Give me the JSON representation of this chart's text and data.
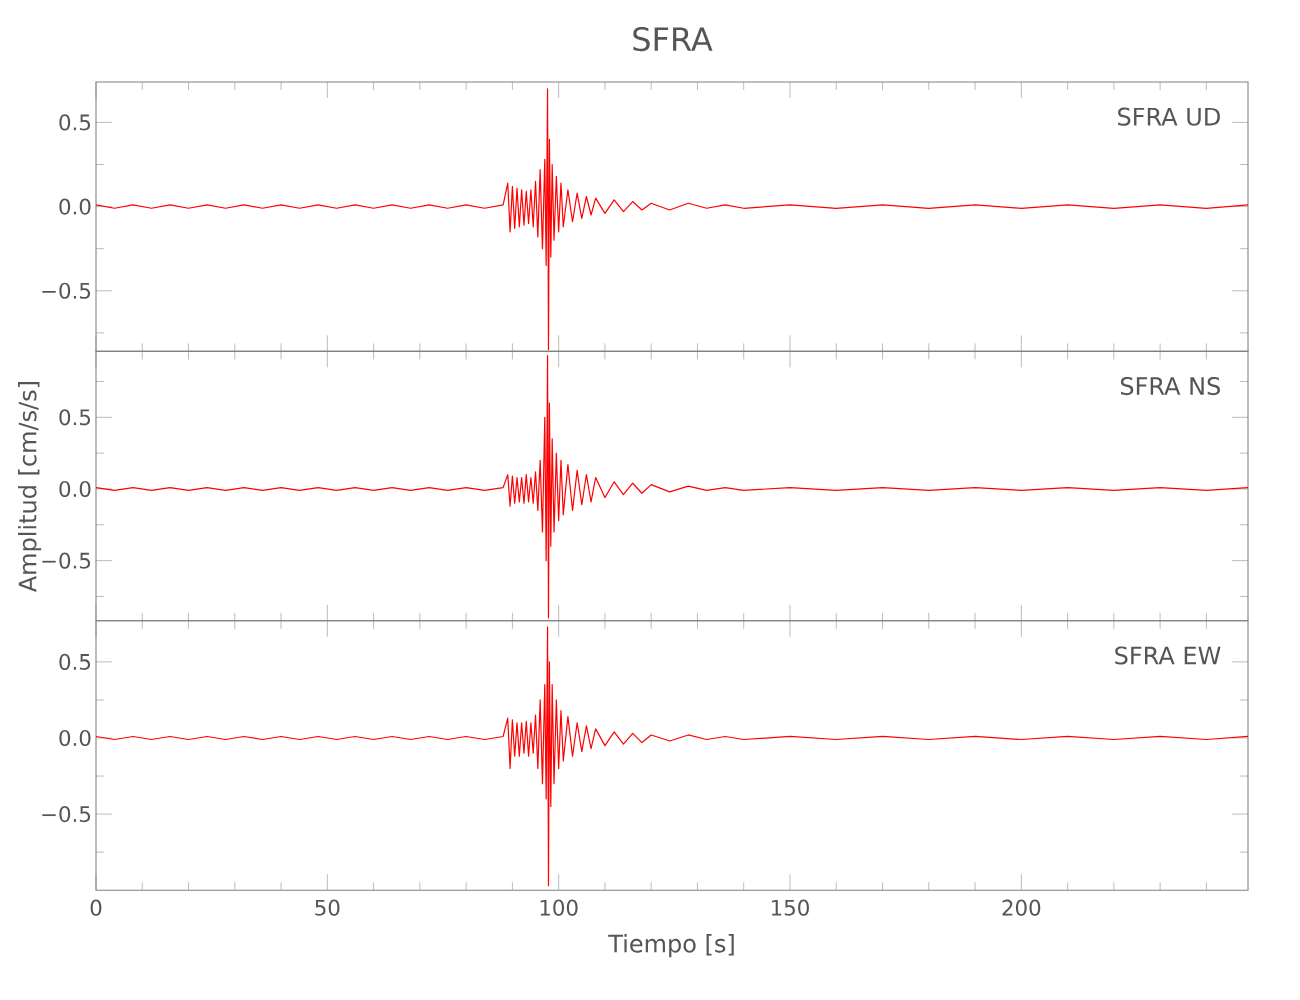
{
  "chart_data": [
    {
      "type": "line",
      "title": "SFRA",
      "annotations": [
        "SFRA UD"
      ],
      "color": "#ff0000",
      "marker": "none",
      "tick_labels": "y",
      "x": [
        0,
        4,
        8,
        12,
        16,
        20,
        24,
        28,
        32,
        36,
        40,
        44,
        48,
        52,
        56,
        60,
        64,
        68,
        72,
        76,
        80,
        84,
        88,
        89,
        89.5,
        90,
        90.5,
        91,
        91.5,
        92,
        92.5,
        93,
        93.5,
        94,
        94.5,
        95,
        95.5,
        96,
        96.5,
        97,
        97.3,
        97.6,
        97.8,
        98,
        98.3,
        98.6,
        99,
        99.5,
        100,
        100.5,
        101,
        102,
        103,
        104,
        105,
        106,
        107,
        108,
        110,
        112,
        114,
        116,
        118,
        120,
        124,
        128,
        132,
        136,
        140,
        150,
        160,
        170,
        180,
        190,
        200,
        210,
        220,
        230,
        240,
        249
      ],
      "values": [
        0.01,
        -0.01,
        0.01,
        -0.01,
        0.01,
        -0.01,
        0.01,
        -0.01,
        0.01,
        -0.01,
        0.01,
        -0.01,
        0.01,
        -0.01,
        0.01,
        -0.01,
        0.01,
        -0.01,
        0.01,
        -0.01,
        0.01,
        -0.01,
        0.01,
        0.14,
        -0.15,
        0.12,
        -0.13,
        0.11,
        -0.12,
        0.1,
        -0.11,
        0.09,
        -0.1,
        0.1,
        -0.12,
        0.15,
        -0.18,
        0.22,
        -0.25,
        0.28,
        -0.35,
        0.7,
        -0.85,
        0.4,
        -0.3,
        0.25,
        -0.2,
        0.18,
        -0.15,
        0.14,
        -0.12,
        0.1,
        -0.09,
        0.08,
        -0.07,
        0.06,
        -0.05,
        0.05,
        -0.04,
        0.04,
        -0.03,
        0.03,
        -0.02,
        0.02,
        -0.02,
        0.02,
        -0.01,
        0.01,
        -0.01,
        0.01,
        -0.01,
        0.01,
        -0.01,
        0.01,
        -0.01,
        0.01,
        -0.01,
        0.01,
        -0.01,
        0.01
      ],
      "xlim": [
        0,
        249
      ],
      "ylim": [
        -0.86,
        0.74
      ],
      "xticks": [
        0,
        {
          "value": 10,
          "label": null
        },
        {
          "value": 20,
          "label": null
        },
        {
          "value": 30,
          "label": null
        },
        {
          "value": 40,
          "label": null
        },
        50,
        {
          "value": 60,
          "label": null
        },
        {
          "value": 70,
          "label": null
        },
        {
          "value": 80,
          "label": null
        },
        {
          "value": 90,
          "label": null
        },
        100,
        {
          "value": 110,
          "label": null
        },
        {
          "value": 120,
          "label": null
        },
        {
          "value": 130,
          "label": null
        },
        {
          "value": 140,
          "label": null
        },
        150,
        {
          "value": 160,
          "label": null
        },
        {
          "value": 170,
          "label": null
        },
        {
          "value": 180,
          "label": null
        },
        {
          "value": 190,
          "label": null
        },
        200,
        {
          "value": 210,
          "label": null
        },
        {
          "value": 220,
          "label": null
        },
        {
          "value": 230,
          "label": null
        },
        {
          "value": 240,
          "label": null
        }
      ],
      "yticks": [
        {
          "value": -0.75,
          "label": null
        },
        {
          "value": -0.5,
          "label": "−0.5"
        },
        {
          "value": -0.25,
          "label": null
        },
        {
          "value": 0,
          "label": "0.0"
        },
        {
          "value": 0.25,
          "label": null
        },
        {
          "value": 0.5,
          "label": "0.5"
        }
      ]
    },
    {
      "type": "line",
      "ylabel": "Amplitud [cm/s/s]",
      "annotations": [
        "SFRA NS"
      ],
      "color": "#ff0000",
      "marker": "none",
      "tick_labels": "y",
      "x": [
        0,
        4,
        8,
        12,
        16,
        20,
        24,
        28,
        32,
        36,
        40,
        44,
        48,
        52,
        56,
        60,
        64,
        68,
        72,
        76,
        80,
        84,
        88,
        89,
        89.5,
        90,
        90.5,
        91,
        91.5,
        92,
        92.5,
        93,
        93.5,
        94,
        94.5,
        95,
        95.5,
        96,
        96.5,
        97,
        97.3,
        97.6,
        97.8,
        98,
        98.3,
        98.6,
        99,
        99.5,
        100,
        100.5,
        101,
        102,
        103,
        104,
        105,
        106,
        107,
        108,
        110,
        112,
        114,
        116,
        118,
        120,
        124,
        128,
        132,
        136,
        140,
        150,
        160,
        170,
        180,
        190,
        200,
        210,
        220,
        230,
        240,
        249
      ],
      "values": [
        0.01,
        -0.01,
        0.01,
        -0.01,
        0.01,
        -0.01,
        0.01,
        -0.01,
        0.01,
        -0.01,
        0.01,
        -0.01,
        0.01,
        -0.01,
        0.01,
        -0.01,
        0.01,
        -0.01,
        0.01,
        -0.01,
        0.01,
        -0.01,
        0.01,
        0.1,
        -0.12,
        0.09,
        -0.1,
        0.08,
        -0.09,
        0.08,
        -0.1,
        0.1,
        -0.09,
        0.08,
        -0.1,
        0.12,
        -0.15,
        0.2,
        -0.3,
        0.5,
        -0.5,
        0.93,
        -0.9,
        0.6,
        -0.4,
        0.35,
        -0.3,
        0.25,
        -0.22,
        0.2,
        -0.18,
        0.17,
        -0.15,
        0.13,
        -0.11,
        0.1,
        -0.09,
        0.08,
        -0.06,
        0.05,
        -0.04,
        0.04,
        -0.03,
        0.03,
        -0.02,
        0.02,
        -0.01,
        0.01,
        -0.01,
        0.01,
        -0.01,
        0.01,
        -0.01,
        0.01,
        -0.01,
        0.01,
        -0.01,
        0.01,
        -0.01,
        0.01
      ],
      "xlim": [
        0,
        249
      ],
      "ylim": [
        -0.92,
        0.96
      ],
      "xticks": [
        0,
        {
          "value": 10,
          "label": null
        },
        {
          "value": 20,
          "label": null
        },
        {
          "value": 30,
          "label": null
        },
        {
          "value": 40,
          "label": null
        },
        50,
        {
          "value": 60,
          "label": null
        },
        {
          "value": 70,
          "label": null
        },
        {
          "value": 80,
          "label": null
        },
        {
          "value": 90,
          "label": null
        },
        100,
        {
          "value": 110,
          "label": null
        },
        {
          "value": 120,
          "label": null
        },
        {
          "value": 130,
          "label": null
        },
        {
          "value": 140,
          "label": null
        },
        150,
        {
          "value": 160,
          "label": null
        },
        {
          "value": 170,
          "label": null
        },
        {
          "value": 180,
          "label": null
        },
        {
          "value": 190,
          "label": null
        },
        200,
        {
          "value": 210,
          "label": null
        },
        {
          "value": 220,
          "label": null
        },
        {
          "value": 230,
          "label": null
        },
        {
          "value": 240,
          "label": null
        }
      ],
      "yticks": [
        {
          "value": -0.75,
          "label": null
        },
        {
          "value": -0.5,
          "label": "−0.5"
        },
        {
          "value": -0.25,
          "label": null
        },
        {
          "value": 0,
          "label": "0.0"
        },
        {
          "value": 0.25,
          "label": null
        },
        {
          "value": 0.5,
          "label": "0.5"
        },
        {
          "value": 0.75,
          "label": null
        }
      ]
    },
    {
      "type": "line",
      "xlabel": "Tiempo [s]",
      "annotations": [
        "SFRA EW"
      ],
      "color": "#ff0000",
      "marker": "none",
      "x": [
        0,
        4,
        8,
        12,
        16,
        20,
        24,
        28,
        32,
        36,
        40,
        44,
        48,
        52,
        56,
        60,
        64,
        68,
        72,
        76,
        80,
        84,
        88,
        89,
        89.5,
        90,
        90.5,
        91,
        91.5,
        92,
        92.5,
        93,
        93.5,
        94,
        94.5,
        95,
        95.5,
        96,
        96.5,
        97,
        97.3,
        97.6,
        97.8,
        98,
        98.3,
        98.6,
        99,
        99.5,
        100,
        100.5,
        101,
        102,
        103,
        104,
        105,
        106,
        107,
        108,
        110,
        112,
        114,
        116,
        118,
        120,
        124,
        128,
        132,
        136,
        140,
        150,
        160,
        170,
        180,
        190,
        200,
        210,
        220,
        230,
        240,
        249
      ],
      "values": [
        0.01,
        -0.01,
        0.01,
        -0.01,
        0.01,
        -0.01,
        0.01,
        -0.01,
        0.01,
        -0.01,
        0.01,
        -0.01,
        0.01,
        -0.01,
        0.01,
        -0.01,
        0.01,
        -0.01,
        0.01,
        -0.01,
        0.01,
        -0.01,
        0.01,
        0.13,
        -0.2,
        0.12,
        -0.12,
        0.1,
        -0.12,
        0.1,
        -0.1,
        0.11,
        -0.12,
        0.1,
        -0.1,
        0.15,
        -0.2,
        0.25,
        -0.3,
        0.35,
        -0.4,
        0.73,
        -0.97,
        0.5,
        -0.45,
        0.35,
        -0.3,
        0.25,
        -0.2,
        0.18,
        -0.15,
        0.14,
        -0.12,
        0.1,
        -0.09,
        0.08,
        -0.07,
        0.06,
        -0.05,
        0.04,
        -0.04,
        0.03,
        -0.03,
        0.02,
        -0.02,
        0.02,
        -0.01,
        0.01,
        -0.01,
        0.01,
        -0.01,
        0.01,
        -0.01,
        0.01,
        -0.01,
        0.01,
        -0.01,
        0.01,
        -0.01,
        0.01
      ],
      "xlim": [
        0,
        249
      ],
      "ylim": [
        -1.0,
        0.77
      ],
      "xticks": [
        0,
        {
          "value": 10,
          "label": null
        },
        {
          "value": 20,
          "label": null
        },
        {
          "value": 30,
          "label": null
        },
        {
          "value": 40,
          "label": null
        },
        50,
        {
          "value": 60,
          "label": null
        },
        {
          "value": 70,
          "label": null
        },
        {
          "value": 80,
          "label": null
        },
        {
          "value": 90,
          "label": null
        },
        100,
        {
          "value": 110,
          "label": null
        },
        {
          "value": 120,
          "label": null
        },
        {
          "value": 130,
          "label": null
        },
        {
          "value": 140,
          "label": null
        },
        150,
        {
          "value": 160,
          "label": null
        },
        {
          "value": 170,
          "label": null
        },
        {
          "value": 180,
          "label": null
        },
        {
          "value": 190,
          "label": null
        },
        200,
        {
          "value": 210,
          "label": null
        },
        {
          "value": 220,
          "label": null
        },
        {
          "value": 230,
          "label": null
        },
        {
          "value": 240,
          "label": null
        }
      ],
      "yticks": [
        {
          "value": -0.75,
          "label": null
        },
        {
          "value": -0.5,
          "label": "−0.5"
        },
        {
          "value": -0.25,
          "label": null
        },
        {
          "value": 0,
          "label": "0.0"
        },
        {
          "value": 0.25,
          "label": null
        },
        {
          "value": 0.5,
          "label": "0.5"
        }
      ]
    }
  ]
}
